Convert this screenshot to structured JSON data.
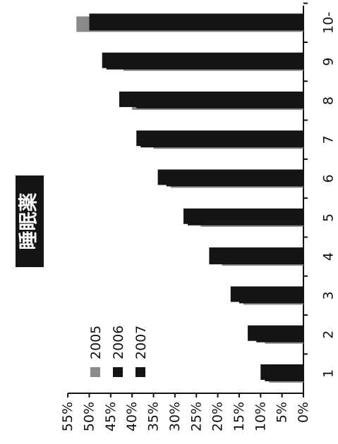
{
  "chart_data": {
    "type": "bar",
    "orientation": "horizontal-bars-rotated",
    "title": "睡眠薬",
    "categories": [
      "1",
      "2",
      "3",
      "4",
      "5",
      "6",
      "7",
      "8",
      "9",
      "10-"
    ],
    "series": [
      {
        "name": "2005",
        "color": "#8a8a8a",
        "values": [
          8,
          9,
          14,
          19,
          24,
          31,
          35,
          40,
          42,
          53
        ]
      },
      {
        "name": "2006",
        "color": "#141414",
        "values": [
          9,
          11,
          15,
          22,
          27,
          32,
          38,
          39,
          46,
          50
        ]
      },
      {
        "name": "2007",
        "color": "#141414",
        "values": [
          10,
          13,
          17,
          22,
          28,
          34,
          39,
          43,
          47,
          50
        ]
      }
    ],
    "value_axis": {
      "range": [
        0,
        55
      ],
      "ticks": [
        "0%",
        "5%",
        "10%",
        "15%",
        "20%",
        "25%",
        "30%",
        "35%",
        "40%",
        "45%",
        "50%",
        "55%"
      ]
    },
    "legend": {
      "placement": "top-left"
    },
    "grid": false
  }
}
